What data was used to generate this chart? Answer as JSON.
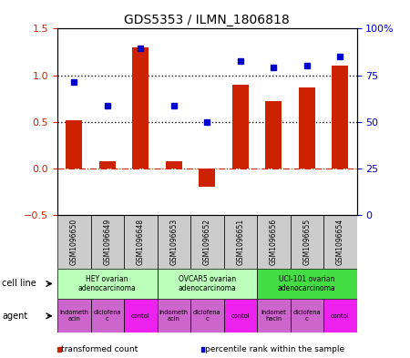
{
  "title": "GDS5353 / ILMN_1806818",
  "samples": [
    "GSM1096650",
    "GSM1096649",
    "GSM1096648",
    "GSM1096653",
    "GSM1096652",
    "GSM1096651",
    "GSM1096656",
    "GSM1096655",
    "GSM1096654"
  ],
  "transformed_count": [
    0.52,
    0.08,
    1.3,
    0.08,
    -0.2,
    0.9,
    0.72,
    0.87,
    1.1
  ],
  "percentile_rank": [
    0.93,
    0.67,
    1.29,
    0.67,
    0.5,
    1.15,
    1.08,
    1.1,
    1.2
  ],
  "bar_color": "#cc2200",
  "dot_color": "#0000cc",
  "ylim_left": [
    -0.5,
    1.5
  ],
  "ylim_right": [
    0,
    100
  ],
  "yticks_left": [
    -0.5,
    0.0,
    0.5,
    1.0,
    1.5
  ],
  "yticks_right": [
    0,
    25,
    50,
    75,
    100
  ],
  "hlines": [
    0.5,
    1.0
  ],
  "zero_line_color": "#cc2200",
  "cell_lines": [
    {
      "label": "HEY ovarian\nadenocarcinoma",
      "start": 0,
      "end": 3,
      "color": "#bbffbb"
    },
    {
      "label": "OVCAR5 ovarian\nadenocarcinoma",
      "start": 3,
      "end": 6,
      "color": "#bbffbb"
    },
    {
      "label": "UCI-101 ovarian\nadenocarcinoma",
      "start": 6,
      "end": 9,
      "color": "#44dd44"
    }
  ],
  "agents": [
    {
      "label": "indometh\nacin",
      "start": 0,
      "end": 1,
      "color": "#cc66cc"
    },
    {
      "label": "diclofena\nc",
      "start": 1,
      "end": 2,
      "color": "#cc66cc"
    },
    {
      "label": "contol",
      "start": 2,
      "end": 3,
      "color": "#ee22ee"
    },
    {
      "label": "indometh\nacin",
      "start": 3,
      "end": 4,
      "color": "#cc66cc"
    },
    {
      "label": "diclofena\nc",
      "start": 4,
      "end": 5,
      "color": "#cc66cc"
    },
    {
      "label": "contol",
      "start": 5,
      "end": 6,
      "color": "#ee22ee"
    },
    {
      "label": "indomet\nhacin",
      "start": 6,
      "end": 7,
      "color": "#cc66cc"
    },
    {
      "label": "diclofena\nc",
      "start": 7,
      "end": 8,
      "color": "#cc66cc"
    },
    {
      "label": "contol",
      "start": 8,
      "end": 9,
      "color": "#ee22ee"
    }
  ],
  "legend_items": [
    {
      "color": "#cc2200",
      "label": "transformed count"
    },
    {
      "color": "#0000cc",
      "label": "percentile rank within the sample"
    }
  ],
  "cell_line_label": "cell line",
  "agent_label": "agent",
  "bar_width": 0.5,
  "sample_bg": "#cccccc"
}
